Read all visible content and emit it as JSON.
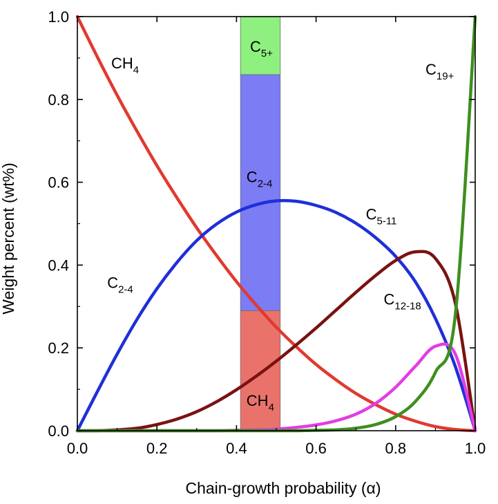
{
  "chart_data": {
    "type": "line",
    "xlabel": "Chain-growth probability (α)",
    "ylabel": "Weight percent (wt%)",
    "xlim": [
      0.0,
      1.0
    ],
    "ylim": [
      0.0,
      1.0
    ],
    "grid": false,
    "x_ticks": [
      "0.0",
      "0.2",
      "0.4",
      "0.6",
      "0.8",
      "1.0"
    ],
    "y_ticks": [
      "0.0",
      "0.2",
      "0.4",
      "0.6",
      "0.8",
      "1.0"
    ],
    "x": [
      0.0,
      0.05,
      0.1,
      0.15,
      0.2,
      0.25,
      0.3,
      0.35,
      0.4,
      0.45,
      0.5,
      0.55,
      0.6,
      0.65,
      0.7,
      0.75,
      0.8,
      0.85,
      0.9,
      0.95,
      1.0
    ],
    "series": [
      {
        "name": "CH4",
        "color": "#e03a2f",
        "values": [
          1.0,
          0.903,
          0.81,
          0.723,
          0.64,
          0.563,
          0.49,
          0.423,
          0.36,
          0.303,
          0.25,
          0.203,
          0.16,
          0.123,
          0.09,
          0.063,
          0.04,
          0.023,
          0.01,
          0.003,
          0.0
        ]
      },
      {
        "name": "C2-4",
        "color": "#1f2fd8",
        "values": [
          0.0,
          0.094,
          0.185,
          0.269,
          0.343,
          0.406,
          0.459,
          0.499,
          0.528,
          0.546,
          0.555,
          0.554,
          0.544,
          0.527,
          0.501,
          0.466,
          0.421,
          0.359,
          0.271,
          0.155,
          0.0
        ]
      },
      {
        "name": "C5-11",
        "color": "#7a1212",
        "values": [
          0.0,
          0.0,
          0.002,
          0.006,
          0.015,
          0.028,
          0.046,
          0.07,
          0.099,
          0.132,
          0.168,
          0.207,
          0.248,
          0.291,
          0.334,
          0.375,
          0.411,
          0.432,
          0.416,
          0.308,
          0.0
        ]
      },
      {
        "name": "C12-18",
        "color": "#e23ee2",
        "values": [
          0.0,
          0.0,
          0.0,
          0.0,
          0.0,
          0.0,
          0.0,
          0.0,
          0.001,
          0.002,
          0.004,
          0.008,
          0.014,
          0.024,
          0.04,
          0.066,
          0.105,
          0.156,
          0.204,
          0.185,
          0.0
        ]
      },
      {
        "name": "C19+",
        "color": "#3e8f1f",
        "values": [
          0.0,
          0.0,
          0.0,
          0.0,
          0.0,
          0.0,
          0.0,
          0.0,
          0.0,
          0.0,
          0.0,
          0.0,
          0.001,
          0.002,
          0.006,
          0.015,
          0.034,
          0.071,
          0.141,
          0.279,
          1.0
        ]
      }
    ],
    "band": {
      "x_range": [
        0.41,
        0.51
      ],
      "segments": [
        {
          "name": "CH4",
          "from": 0.0,
          "to": 0.29,
          "color": "#e9736b"
        },
        {
          "name": "C2-4",
          "from": 0.29,
          "to": 0.86,
          "color": "#7c7cf5"
        },
        {
          "name": "C5+",
          "from": 0.86,
          "to": 1.0,
          "color": "#8ef07f"
        }
      ]
    },
    "annotations": [
      {
        "main": "CH",
        "sub": "4",
        "x": 0.085,
        "y": 0.875
      },
      {
        "main": "C",
        "sub": "2-4",
        "x": 0.075,
        "y": 0.345
      },
      {
        "main": "C",
        "sub": "2-4",
        "x": 0.425,
        "y": 0.6
      },
      {
        "main": "C",
        "sub": "5-11",
        "x": 0.725,
        "y": 0.51
      },
      {
        "main": "C",
        "sub": "12-18",
        "x": 0.77,
        "y": 0.305
      },
      {
        "main": "C",
        "sub": "19+",
        "x": 0.875,
        "y": 0.86
      },
      {
        "main": "C",
        "sub": "5+",
        "x": 0.434,
        "y": 0.915
      },
      {
        "main": "CH",
        "sub": "4",
        "x": 0.425,
        "y": 0.06
      }
    ]
  }
}
